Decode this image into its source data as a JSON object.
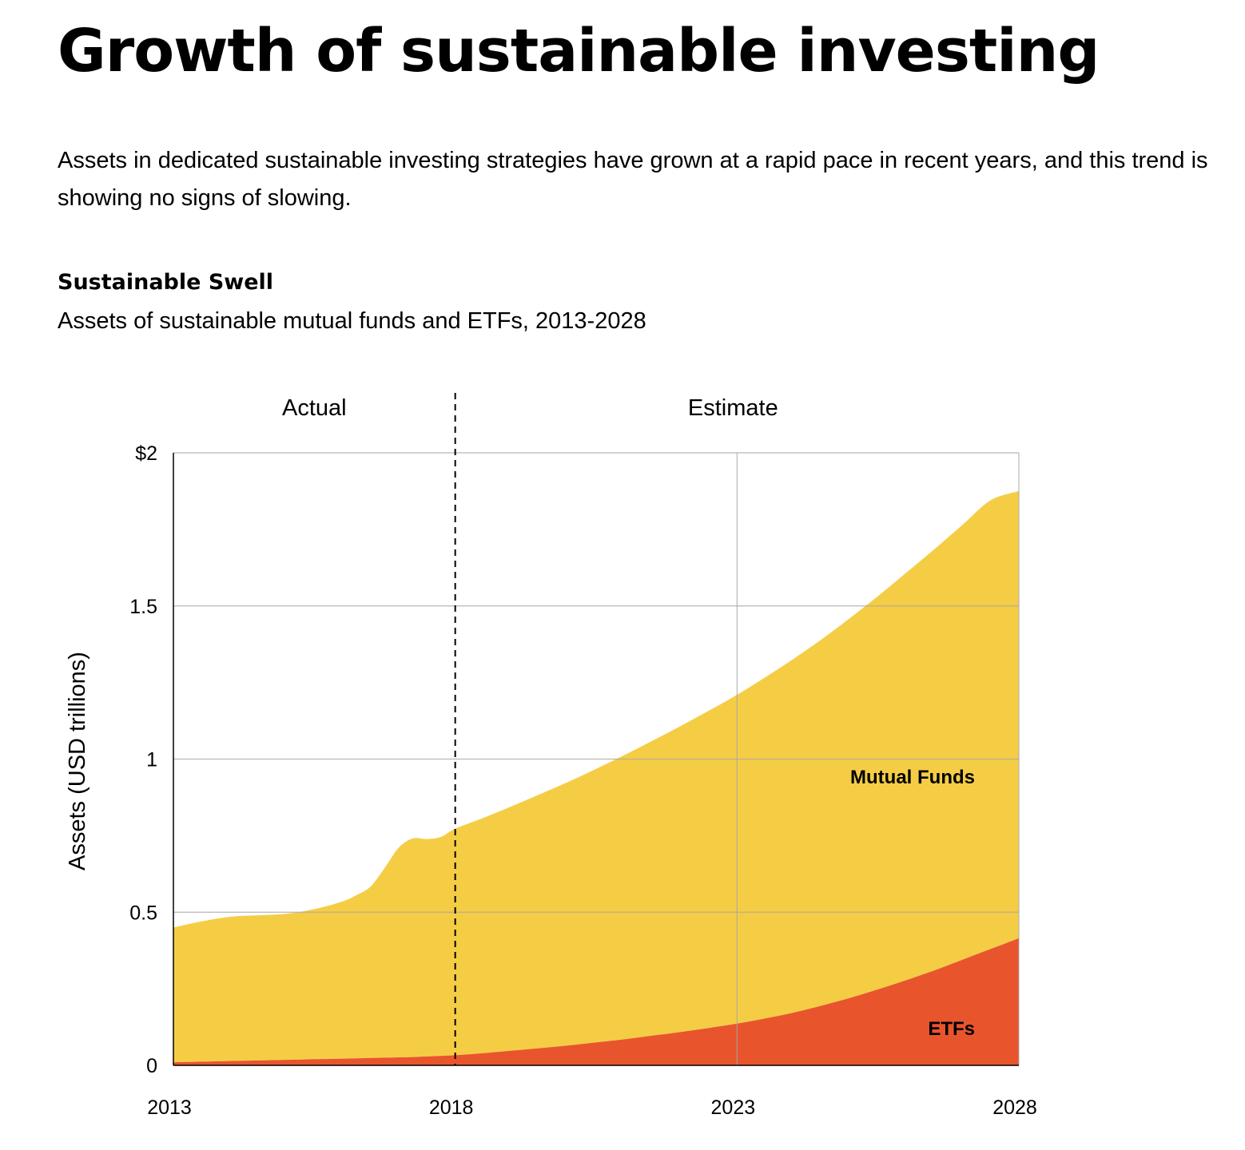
{
  "header": {
    "title": "Growth of sustainable investing",
    "intro": "Assets in dedicated sustainable investing strategies have grown at a rapid pace in recent years, and this trend is showing no signs of slowing."
  },
  "chart_data": {
    "type": "area",
    "stacked": true,
    "title": "Sustainable Swell",
    "subtitle": "Assets of sustainable mutual funds and ETFs, 2013-2028",
    "xlabel": "",
    "ylabel": "Assets (USD trillions)",
    "xlim": [
      2013,
      2028
    ],
    "ylim": [
      0,
      2
    ],
    "x_ticks": [
      2013,
      2018,
      2023,
      2028
    ],
    "x_tick_labels": [
      "2013",
      "2018",
      "2023",
      "2028"
    ],
    "y_ticks": [
      0,
      0.5,
      1,
      1.5,
      2
    ],
    "y_tick_labels": [
      "0",
      "0.5",
      "1",
      "1.5",
      "$2"
    ],
    "grid": true,
    "regions": [
      {
        "label": "Actual",
        "from": 2013,
        "to": 2018
      },
      {
        "label": "Estimate",
        "from": 2018,
        "to": 2028
      }
    ],
    "divider_x": 2018,
    "x": [
      2013,
      2013.5,
      2014,
      2014.5,
      2015,
      2015.5,
      2016,
      2016.25,
      2016.5,
      2016.75,
      2017,
      2017.25,
      2017.5,
      2017.75,
      2018,
      2018.5,
      2019,
      2019.5,
      2020,
      2020.5,
      2021,
      2021.5,
      2022,
      2022.5,
      2023,
      2023.5,
      2024,
      2024.5,
      2025,
      2025.5,
      2026,
      2026.5,
      2027,
      2027.5,
      2028
    ],
    "series": [
      {
        "name": "ETFs",
        "color": "#e8552d",
        "values": [
          0.01,
          0.012,
          0.014,
          0.016,
          0.018,
          0.02,
          0.022,
          0.023,
          0.024,
          0.025,
          0.026,
          0.027,
          0.029,
          0.031,
          0.033,
          0.04,
          0.048,
          0.056,
          0.065,
          0.075,
          0.085,
          0.097,
          0.109,
          0.122,
          0.136,
          0.153,
          0.172,
          0.195,
          0.22,
          0.248,
          0.278,
          0.31,
          0.345,
          0.38,
          0.415
        ]
      },
      {
        "name": "Mutual Funds",
        "color": "#f5cd45",
        "values": [
          0.44,
          0.458,
          0.471,
          0.474,
          0.477,
          0.49,
          0.513,
          0.533,
          0.56,
          0.62,
          0.685,
          0.714,
          0.71,
          0.715,
          0.74,
          0.768,
          0.798,
          0.829,
          0.86,
          0.893,
          0.928,
          0.963,
          0.999,
          1.036,
          1.074,
          1.114,
          1.155,
          1.196,
          1.24,
          1.284,
          1.33,
          1.375,
          1.42,
          1.465,
          1.46
        ]
      }
    ],
    "series_labels": [
      "Mutual Funds",
      "ETFs"
    ],
    "colors": {
      "etfs": "#e8552d",
      "mutual_funds": "#f5cd45",
      "grid": "#a6a6a6",
      "axis": "#000000"
    }
  }
}
